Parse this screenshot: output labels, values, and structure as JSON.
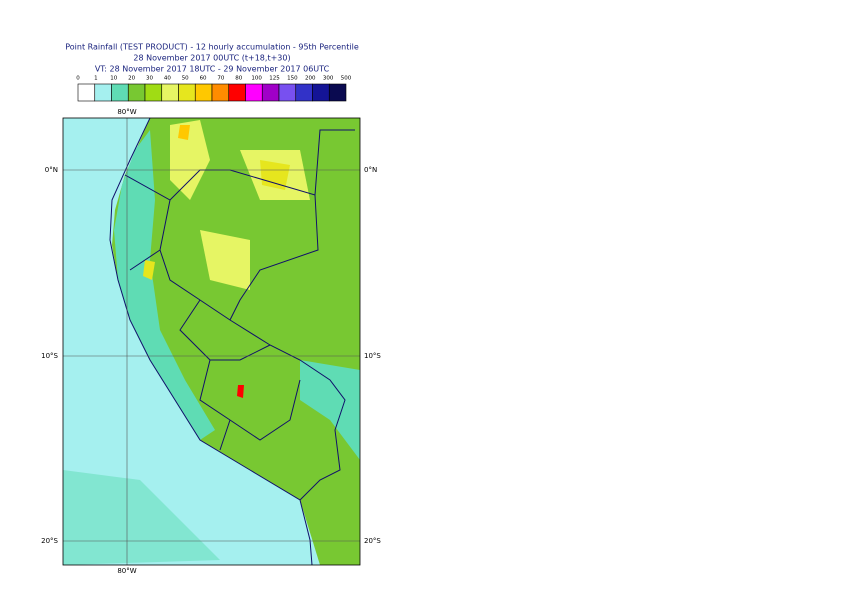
{
  "header": {
    "title": "Point Rainfall (TEST PRODUCT) - 12 hourly accumulation - 95th Percentile",
    "run": "28 November 2017 00UTC (t+18,t+30)",
    "valid": "VT: 28 November 2017 18UTC - 29 November 2017 06UTC"
  },
  "legend": {
    "labels": [
      "0",
      "1",
      "10",
      "20",
      "30",
      "40",
      "50",
      "60",
      "70",
      "80",
      "100",
      "125",
      "150",
      "200",
      "300",
      "500"
    ],
    "colors": [
      "#ffffff",
      "#a5f0ef",
      "#5fdcb4",
      "#78c832",
      "#a0dc14",
      "#e6f564",
      "#e6e61e",
      "#ffc800",
      "#ff8c00",
      "#ff0000",
      "#ff00ff",
      "#a000c8",
      "#7850f0",
      "#3232c8",
      "#141496",
      "#0a0a50"
    ]
  },
  "map": {
    "lon_labels": [
      "80°W",
      "80°W"
    ],
    "lat_labels_left": [
      "0°N",
      "10°S",
      "20°S"
    ],
    "lat_labels_right": [
      "0°N",
      "10°S",
      "20°S"
    ]
  }
}
